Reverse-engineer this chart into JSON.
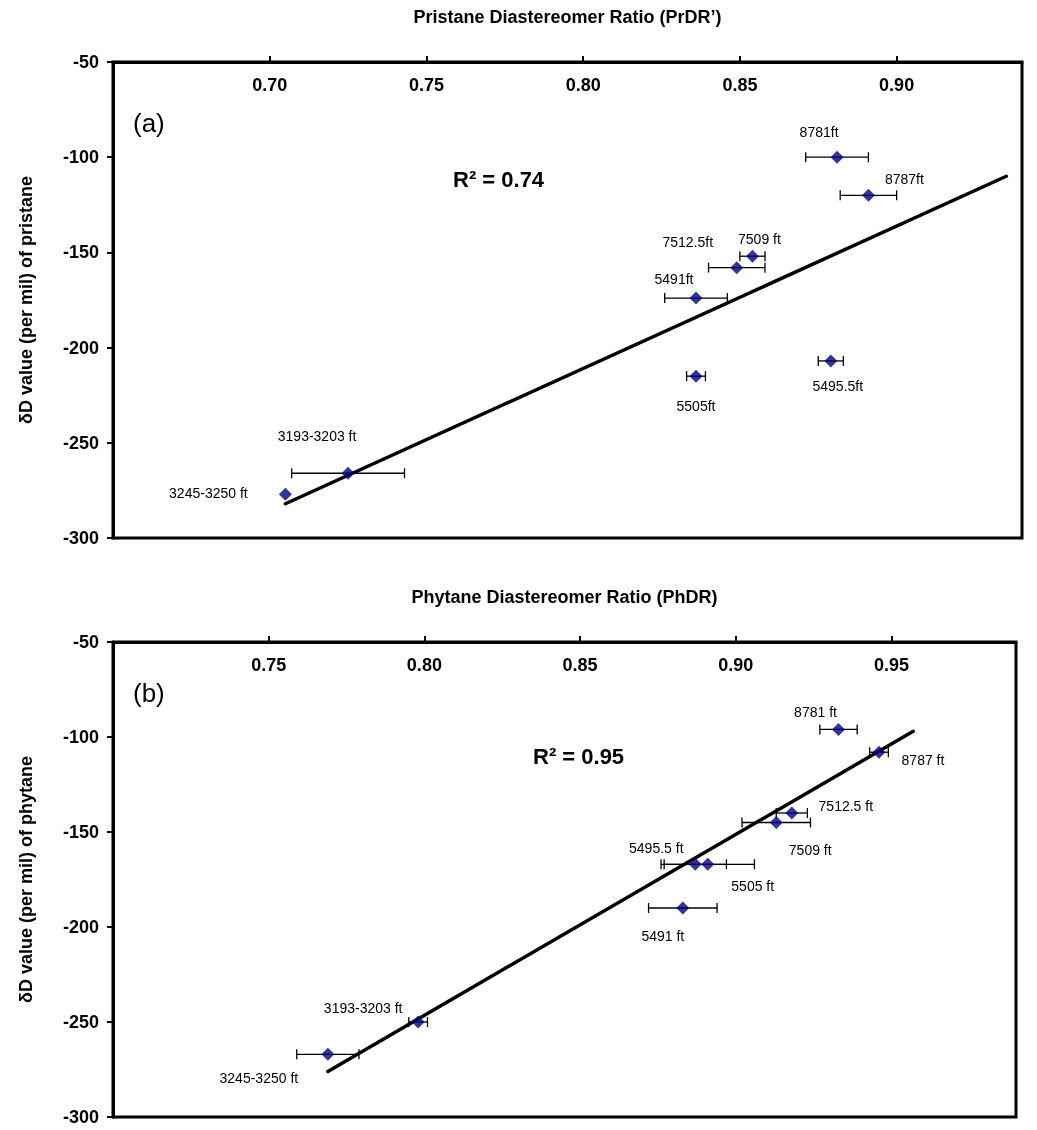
{
  "chart_data": [
    {
      "type": "scatter",
      "xlabel": "Pristane Diastereomer Ratio (PrDR’)",
      "ylabel": "δD value (per mil) of pristane",
      "xlim": [
        0.65,
        0.94
      ],
      "xticks": [
        {
          "value": 0.7,
          "label": "0.70"
        },
        0.75,
        {
          "value": 0.8,
          "label": "0.80"
        },
        0.85,
        {
          "value": 0.9,
          "label": "0.90"
        }
      ],
      "ylim": [
        -300,
        -50
      ],
      "yticks": [
        -300,
        -250,
        -200,
        -150,
        -100,
        -50
      ],
      "marker": "diamond",
      "annotations": [
        "(a)",
        "R² = 0.74",
        {
          "text": "8781ft",
          "x": 0.881,
          "y": -100
        },
        {
          "text": "8787ft",
          "x": 0.891,
          "y": -120
        },
        {
          "text": "7509 ft",
          "x": 0.854,
          "y": -152
        },
        {
          "text": "7512.5ft",
          "x": 0.849,
          "y": -158
        },
        {
          "text": "5491ft",
          "x": 0.836,
          "y": -174
        },
        {
          "text": "5505ft",
          "x": 0.836,
          "y": -215
        },
        {
          "text": "5495.5ft",
          "x": 0.879,
          "y": -207
        },
        {
          "text": "3193-3203 ft",
          "x": 0.725,
          "y": -266
        },
        {
          "text": "3245-3250 ft",
          "x": 0.705,
          "y": -277
        }
      ],
      "series": [
        {
          "type": "scatter",
          "color": "#000080",
          "x": [
            0.881,
            0.891,
            0.854,
            0.849,
            0.836,
            0.836,
            0.879,
            0.725,
            0.705
          ],
          "values": [
            -100,
            -120,
            -152,
            -158,
            -174,
            -215,
            -207,
            -266,
            -277
          ],
          "xerrors": [
            0.01,
            0.009,
            0.004,
            0.009,
            0.01,
            0.003,
            0.004,
            0.018,
            null
          ]
        },
        {
          "type": "line",
          "color": "#000000",
          "marker": "none",
          "line_style": "solid",
          "x": [
            0.705,
            0.935
          ],
          "values": [
            -282,
            -110
          ]
        }
      ]
    },
    {
      "type": "scatter",
      "xlabel": "Phytane Diastereomer Ratio (PhDR)",
      "ylabel": "δD value (per mil) of phytane",
      "xlim": [
        0.7,
        0.99
      ],
      "xticks": [
        0.75,
        {
          "value": 0.8,
          "label": "0.80"
        },
        0.85,
        {
          "value": 0.9,
          "label": "0.90"
        },
        0.95
      ],
      "ylim": [
        -300,
        -50
      ],
      "yticks": [
        -300,
        -250,
        -200,
        -150,
        -100,
        -50
      ],
      "marker": "diamond",
      "annotations": [
        "(b)",
        "R² = 0.95",
        {
          "text": "8781 ft",
          "x": 0.933,
          "y": -96
        },
        {
          "text": "8787 ft",
          "x": 0.946,
          "y": -108
        },
        {
          "text": "7512.5 ft",
          "x": 0.918,
          "y": -140
        },
        {
          "text": "7509 ft",
          "x": 0.913,
          "y": -145
        },
        {
          "text": "5495.5 ft",
          "x": 0.887,
          "y": -167
        },
        {
          "text": "5505 ft",
          "x": 0.891,
          "y": -167
        },
        {
          "text": "5491 ft",
          "x": 0.883,
          "y": -190
        },
        {
          "text": "3193-3203 ft",
          "x": 0.798,
          "y": -250
        },
        {
          "text": "3245-3250 ft",
          "x": 0.769,
          "y": -267
        }
      ],
      "series": [
        {
          "type": "scatter",
          "color": "#000080",
          "x": [
            0.933,
            0.946,
            0.918,
            0.913,
            0.887,
            0.891,
            0.883,
            0.798,
            0.769
          ],
          "values": [
            -96,
            -108,
            -140,
            -145,
            -167,
            -167,
            -190,
            -250,
            -267
          ],
          "xerrors": [
            0.006,
            0.003,
            0.005,
            0.011,
            0.01,
            0.015,
            0.011,
            0.003,
            0.01
          ]
        },
        {
          "type": "line",
          "color": "#000000",
          "marker": "none",
          "line_style": "solid",
          "x": [
            0.769,
            0.957
          ],
          "values": [
            -276,
            -97
          ]
        }
      ]
    }
  ]
}
